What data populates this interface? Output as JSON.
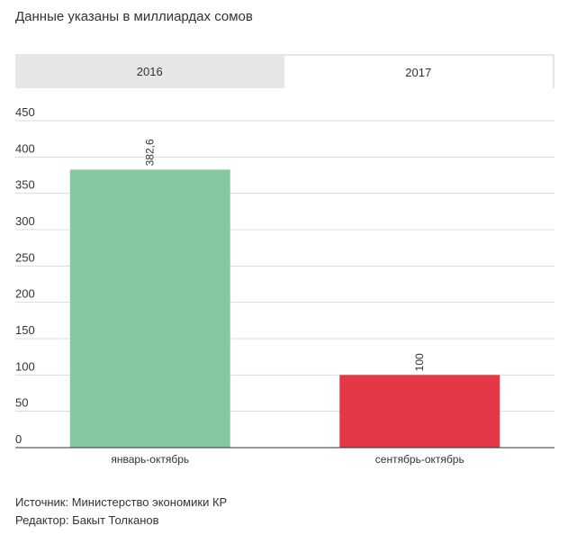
{
  "subtitle": "Данные указаны в миллиардах сомов",
  "tabs": [
    {
      "label": "2016",
      "active": false
    },
    {
      "label": "2017",
      "active": true
    }
  ],
  "chart_data": {
    "type": "bar",
    "categories": [
      "январь-октябрь",
      "сентябрь-октябрь"
    ],
    "values": [
      382.6,
      100
    ],
    "data_labels": [
      "382,6",
      "100"
    ],
    "colors": [
      "#86c9a0",
      "#e63746"
    ],
    "y_ticks": [
      0,
      50,
      100,
      150,
      200,
      250,
      300,
      350,
      400,
      450
    ],
    "ylim": [
      0,
      450
    ],
    "grid": true,
    "legend": "none"
  },
  "footer": {
    "source": "Источник: Министерство экономики КР",
    "editor": "Редактор: Бакыт Толканов"
  }
}
